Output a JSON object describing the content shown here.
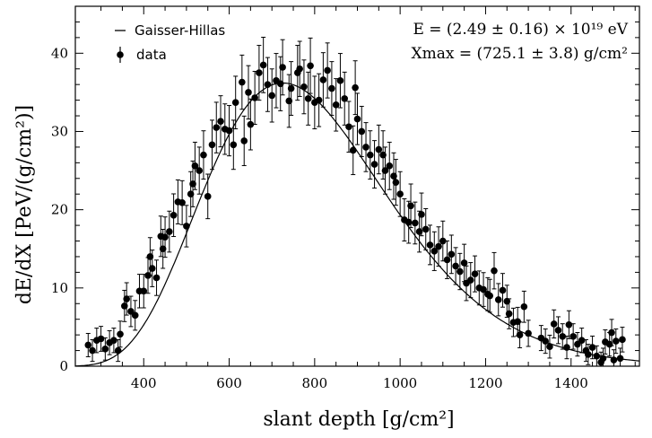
{
  "chart_data": {
    "type": "scatter",
    "title": "",
    "xlabel": "slant depth [g/cm²]",
    "ylabel": "dE/dX [PeV/(g/cm²)]",
    "xlim": [
      240,
      1560
    ],
    "ylim": [
      0,
      46
    ],
    "xticks": [
      400,
      600,
      800,
      1000,
      1200,
      1400
    ],
    "yticks": [
      0,
      10,
      20,
      30,
      40
    ],
    "grid": false,
    "legend_position": "top-left",
    "legend": [
      "Gaisser-Hillas",
      "data"
    ],
    "annotations": [
      "E = (2.49 ± 0.16) × 10¹⁹ eV",
      "Xmax = (725.1 ± 3.8) g/cm²"
    ],
    "fit": {
      "name": "Gaisser-Hillas",
      "Xmax": 725.1,
      "Emax": 36.2,
      "X0": 150,
      "lambda": 80
    },
    "series": [
      {
        "name": "data",
        "points": [
          [
            270,
            2.7
          ],
          [
            280,
            2.0
          ],
          [
            290,
            3.3
          ],
          [
            300,
            3.5
          ],
          [
            310,
            2.2
          ],
          [
            320,
            3.0
          ],
          [
            330,
            3.3
          ],
          [
            340,
            2.0
          ],
          [
            345,
            4.1
          ],
          [
            355,
            7.7
          ],
          [
            360,
            8.6
          ],
          [
            370,
            7.0
          ],
          [
            380,
            6.5
          ],
          [
            390,
            9.6
          ],
          [
            400,
            9.6
          ],
          [
            410,
            11.6
          ],
          [
            415,
            14.0
          ],
          [
            420,
            12.5
          ],
          [
            430,
            11.3
          ],
          [
            440,
            16.6
          ],
          [
            445,
            15.0
          ],
          [
            450,
            16.5
          ],
          [
            460,
            17.2
          ],
          [
            470,
            19.3
          ],
          [
            480,
            21.0
          ],
          [
            490,
            20.9
          ],
          [
            500,
            17.9
          ],
          [
            510,
            22.0
          ],
          [
            515,
            23.3
          ],
          [
            520,
            25.6
          ],
          [
            530,
            25.0
          ],
          [
            540,
            27.0
          ],
          [
            550,
            21.7
          ],
          [
            560,
            28.3
          ],
          [
            570,
            30.5
          ],
          [
            580,
            31.3
          ],
          [
            590,
            30.3
          ],
          [
            600,
            30.1
          ],
          [
            610,
            28.3
          ],
          [
            615,
            33.7
          ],
          [
            630,
            36.3
          ],
          [
            635,
            28.8
          ],
          [
            645,
            35.0
          ],
          [
            650,
            30.9
          ],
          [
            660,
            34.3
          ],
          [
            670,
            37.5
          ],
          [
            680,
            38.5
          ],
          [
            690,
            36.0
          ],
          [
            700,
            34.6
          ],
          [
            710,
            36.5
          ],
          [
            720,
            36.1
          ],
          [
            725,
            38.2
          ],
          [
            740,
            33.9
          ],
          [
            745,
            35.5
          ],
          [
            760,
            37.5
          ],
          [
            765,
            38.0
          ],
          [
            775,
            35.7
          ],
          [
            785,
            34.2
          ],
          [
            790,
            38.4
          ],
          [
            800,
            33.7
          ],
          [
            810,
            34.0
          ],
          [
            820,
            36.6
          ],
          [
            830,
            37.8
          ],
          [
            840,
            35.5
          ],
          [
            850,
            33.4
          ],
          [
            860,
            36.5
          ],
          [
            870,
            34.2
          ],
          [
            880,
            30.6
          ],
          [
            890,
            27.6
          ],
          [
            895,
            35.6
          ],
          [
            900,
            31.6
          ],
          [
            910,
            30.0
          ],
          [
            920,
            28.0
          ],
          [
            930,
            27.0
          ],
          [
            940,
            25.8
          ],
          [
            950,
            27.7
          ],
          [
            960,
            27.0
          ],
          [
            965,
            25.0
          ],
          [
            975,
            25.6
          ],
          [
            985,
            24.3
          ],
          [
            990,
            23.5
          ],
          [
            1000,
            22.0
          ],
          [
            1010,
            18.7
          ],
          [
            1020,
            18.4
          ],
          [
            1025,
            20.5
          ],
          [
            1035,
            18.3
          ],
          [
            1045,
            17.2
          ],
          [
            1050,
            19.4
          ],
          [
            1060,
            17.5
          ],
          [
            1070,
            15.5
          ],
          [
            1080,
            14.7
          ],
          [
            1090,
            15.3
          ],
          [
            1100,
            16.0
          ],
          [
            1110,
            13.6
          ],
          [
            1120,
            14.3
          ],
          [
            1130,
            12.8
          ],
          [
            1140,
            12.1
          ],
          [
            1150,
            13.2
          ],
          [
            1155,
            10.6
          ],
          [
            1165,
            11.0
          ],
          [
            1175,
            11.8
          ],
          [
            1185,
            10.0
          ],
          [
            1195,
            9.8
          ],
          [
            1205,
            9.2
          ],
          [
            1210,
            9.0
          ],
          [
            1220,
            12.2
          ],
          [
            1230,
            8.5
          ],
          [
            1240,
            9.7
          ],
          [
            1250,
            8.3
          ],
          [
            1255,
            6.7
          ],
          [
            1265,
            5.6
          ],
          [
            1275,
            5.7
          ],
          [
            1280,
            4.0
          ],
          [
            1290,
            7.6
          ],
          [
            1300,
            4.2
          ],
          [
            1330,
            3.6
          ],
          [
            1340,
            3.2
          ],
          [
            1350,
            2.5
          ],
          [
            1360,
            5.4
          ],
          [
            1370,
            4.6
          ],
          [
            1380,
            3.8
          ],
          [
            1390,
            2.4
          ],
          [
            1395,
            5.3
          ],
          [
            1405,
            3.8
          ],
          [
            1415,
            2.8
          ],
          [
            1425,
            3.3
          ],
          [
            1435,
            2.0
          ],
          [
            1440,
            1.5
          ],
          [
            1450,
            2.4
          ],
          [
            1460,
            1.3
          ],
          [
            1470,
            0.5
          ],
          [
            1475,
            1.0
          ],
          [
            1480,
            3.1
          ],
          [
            1490,
            2.8
          ],
          [
            1495,
            4.3
          ],
          [
            1500,
            0.8
          ],
          [
            1505,
            3.2
          ],
          [
            1515,
            1.0
          ],
          [
            1520,
            3.4
          ]
        ]
      }
    ]
  }
}
